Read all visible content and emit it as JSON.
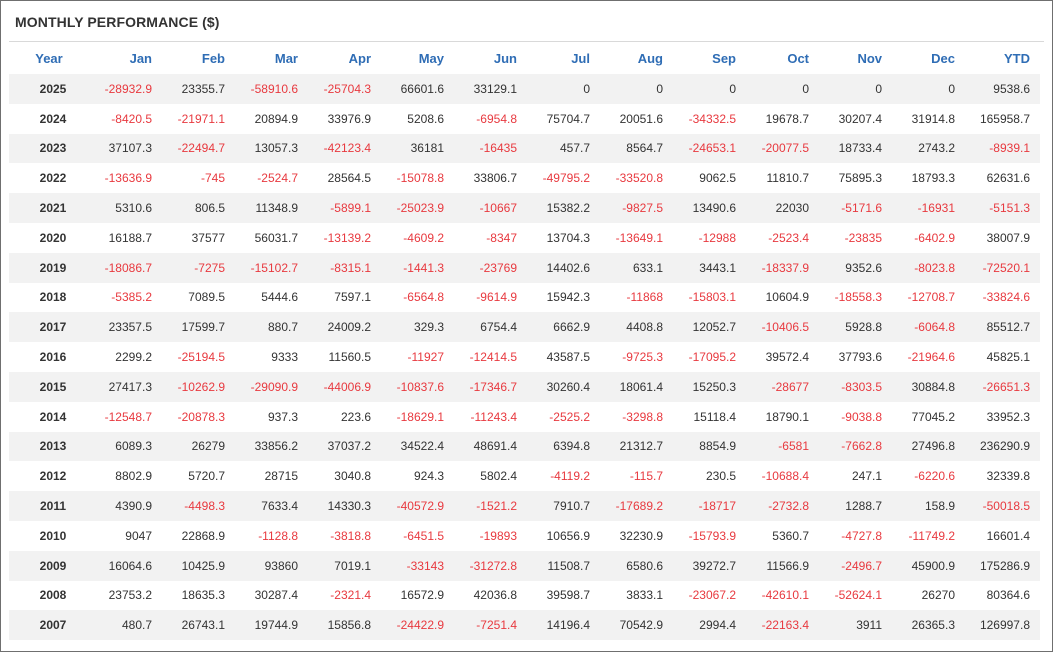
{
  "title": "MONTHLY PERFORMANCE ($)",
  "colors": {
    "header_text": "#2f6db5",
    "negative": "#e8393f",
    "text": "#333333",
    "row_stripe": "#f2f2f2"
  },
  "columns": [
    "Year",
    "Jan",
    "Feb",
    "Mar",
    "Apr",
    "May",
    "Jun",
    "Jul",
    "Aug",
    "Sep",
    "Oct",
    "Nov",
    "Dec",
    "YTD"
  ],
  "rows": [
    [
      "2025",
      "-28932.9",
      "23355.7",
      "-58910.6",
      "-25704.3",
      "66601.6",
      "33129.1",
      "0",
      "0",
      "0",
      "0",
      "0",
      "0",
      "9538.6"
    ],
    [
      "2024",
      "-8420.5",
      "-21971.1",
      "20894.9",
      "33976.9",
      "5208.6",
      "-6954.8",
      "75704.7",
      "20051.6",
      "-34332.5",
      "19678.7",
      "30207.4",
      "31914.8",
      "165958.7"
    ],
    [
      "2023",
      "37107.3",
      "-22494.7",
      "13057.3",
      "-42123.4",
      "36181",
      "-16435",
      "457.7",
      "8564.7",
      "-24653.1",
      "-20077.5",
      "18733.4",
      "2743.2",
      "-8939.1"
    ],
    [
      "2022",
      "-13636.9",
      "-745",
      "-2524.7",
      "28564.5",
      "-15078.8",
      "33806.7",
      "-49795.2",
      "-33520.8",
      "9062.5",
      "11810.7",
      "75895.3",
      "18793.3",
      "62631.6"
    ],
    [
      "2021",
      "5310.6",
      "806.5",
      "11348.9",
      "-5899.1",
      "-25023.9",
      "-10667",
      "15382.2",
      "-9827.5",
      "13490.6",
      "22030",
      "-5171.6",
      "-16931",
      "-5151.3"
    ],
    [
      "2020",
      "16188.7",
      "37577",
      "56031.7",
      "-13139.2",
      "-4609.2",
      "-8347",
      "13704.3",
      "-13649.1",
      "-12988",
      "-2523.4",
      "-23835",
      "-6402.9",
      "38007.9"
    ],
    [
      "2019",
      "-18086.7",
      "-7275",
      "-15102.7",
      "-8315.1",
      "-1441.3",
      "-23769",
      "14402.6",
      "633.1",
      "3443.1",
      "-18337.9",
      "9352.6",
      "-8023.8",
      "-72520.1"
    ],
    [
      "2018",
      "-5385.2",
      "7089.5",
      "5444.6",
      "7597.1",
      "-6564.8",
      "-9614.9",
      "15942.3",
      "-11868",
      "-15803.1",
      "10604.9",
      "-18558.3",
      "-12708.7",
      "-33824.6"
    ],
    [
      "2017",
      "23357.5",
      "17599.7",
      "880.7",
      "24009.2",
      "329.3",
      "6754.4",
      "6662.9",
      "4408.8",
      "12052.7",
      "-10406.5",
      "5928.8",
      "-6064.8",
      "85512.7"
    ],
    [
      "2016",
      "2299.2",
      "-25194.5",
      "9333",
      "11560.5",
      "-11927",
      "-12414.5",
      "43587.5",
      "-9725.3",
      "-17095.2",
      "39572.4",
      "37793.6",
      "-21964.6",
      "45825.1"
    ],
    [
      "2015",
      "27417.3",
      "-10262.9",
      "-29090.9",
      "-44006.9",
      "-10837.6",
      "-17346.7",
      "30260.4",
      "18061.4",
      "15250.3",
      "-28677",
      "-8303.5",
      "30884.8",
      "-26651.3"
    ],
    [
      "2014",
      "-12548.7",
      "-20878.3",
      "937.3",
      "223.6",
      "-18629.1",
      "-11243.4",
      "-2525.2",
      "-3298.8",
      "15118.4",
      "18790.1",
      "-9038.8",
      "77045.2",
      "33952.3"
    ],
    [
      "2013",
      "6089.3",
      "26279",
      "33856.2",
      "37037.2",
      "34522.4",
      "48691.4",
      "6394.8",
      "21312.7",
      "8854.9",
      "-6581",
      "-7662.8",
      "27496.8",
      "236290.9"
    ],
    [
      "2012",
      "8802.9",
      "5720.7",
      "28715",
      "3040.8",
      "924.3",
      "5802.4",
      "-4119.2",
      "-115.7",
      "230.5",
      "-10688.4",
      "247.1",
      "-6220.6",
      "32339.8"
    ],
    [
      "2011",
      "4390.9",
      "-4498.3",
      "7633.4",
      "14330.3",
      "-40572.9",
      "-1521.2",
      "7910.7",
      "-17689.2",
      "-18717",
      "-2732.8",
      "1288.7",
      "158.9",
      "-50018.5"
    ],
    [
      "2010",
      "9047",
      "22868.9",
      "-1128.8",
      "-3818.8",
      "-6451.5",
      "-19893",
      "10656.9",
      "32230.9",
      "-15793.9",
      "5360.7",
      "-4727.8",
      "-11749.2",
      "16601.4"
    ],
    [
      "2009",
      "16064.6",
      "10425.9",
      "93860",
      "7019.1",
      "-33143",
      "-31272.8",
      "11508.7",
      "6580.6",
      "39272.7",
      "11566.9",
      "-2496.7",
      "45900.9",
      "175286.9"
    ],
    [
      "2008",
      "23753.2",
      "18635.3",
      "30287.4",
      "-2321.4",
      "16572.9",
      "42036.8",
      "39598.7",
      "3833.1",
      "-23067.2",
      "-42610.1",
      "-52624.1",
      "26270",
      "80364.6"
    ],
    [
      "2007",
      "480.7",
      "26743.1",
      "19744.9",
      "15856.8",
      "-24422.9",
      "-7251.4",
      "14196.4",
      "70542.9",
      "2994.4",
      "-22163.4",
      "3911",
      "26365.3",
      "126997.8"
    ]
  ]
}
